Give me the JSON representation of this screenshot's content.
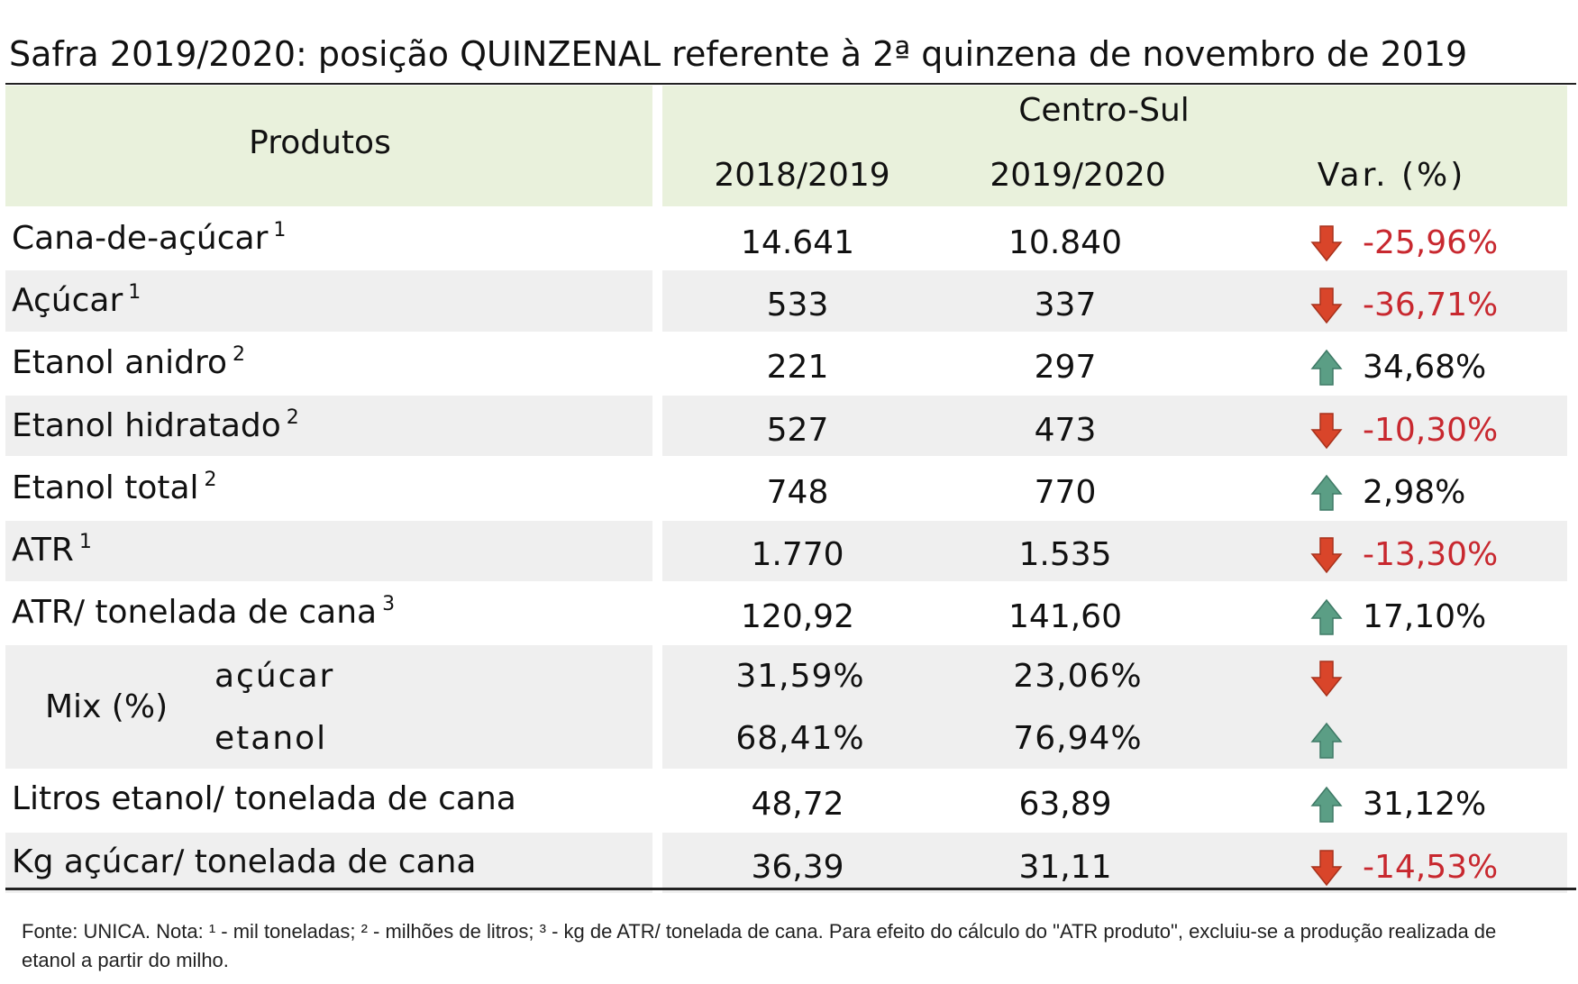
{
  "title": "Safra 2019/2020: posição QUINZENAL referente à 2ª quinzena de novembro de 2019",
  "table": {
    "header": {
      "products": "Produtos",
      "region": "Centro-Sul",
      "columns": [
        "2018/2019",
        "2019/2020",
        "Var. (%)"
      ]
    },
    "rows": [
      {
        "label": "Cana-de-açúcar",
        "note": "1",
        "values": [
          "14.641",
          "10.840"
        ],
        "var": "-25,96%",
        "trend": "down"
      },
      {
        "label": "Açúcar",
        "note": "1",
        "values": [
          "533",
          "337"
        ],
        "var": "-36,71%",
        "trend": "down"
      },
      {
        "label": "Etanol anidro",
        "note": "2",
        "values": [
          "221",
          "297"
        ],
        "var": "34,68%",
        "trend": "up"
      },
      {
        "label": "Etanol hidratado",
        "note": "2",
        "values": [
          "527",
          "473"
        ],
        "var": "-10,30%",
        "trend": "down"
      },
      {
        "label": "Etanol total",
        "note": "2",
        "values": [
          "748",
          "770"
        ],
        "var": "2,98%",
        "trend": "up"
      },
      {
        "label": "ATR",
        "note": "1",
        "values": [
          "1.770",
          "1.535"
        ],
        "var": "-13,30%",
        "trend": "down"
      },
      {
        "label": "ATR/ tonelada de cana",
        "note": "3",
        "values": [
          "120,92",
          "141,60"
        ],
        "var": "17,10%",
        "trend": "up"
      },
      {
        "label": "Mix (%)",
        "items": [
          {
            "label": "açúcar",
            "values": [
              "31,59%",
              "23,06%"
            ],
            "trend": "down"
          },
          {
            "label": "etanol",
            "values": [
              "68,41%",
              "76,94%"
            ],
            "trend": "up"
          }
        ]
      },
      {
        "label": "Litros etanol/ tonelada de cana",
        "values": [
          "48,72",
          "63,89"
        ],
        "var": "31,12%",
        "trend": "up"
      },
      {
        "label": "Kg açúcar/ tonelada de cana",
        "values": [
          "36,39",
          "31,11"
        ],
        "var": "-14,53%",
        "trend": "down"
      }
    ]
  },
  "footnote": "Fonte: UNICA. Nota: ¹ - mil toneladas; ² - milhões de litros; ³ - kg de ATR/ tonelada de cana. Para efeito do cálculo do \"ATR produto\", excluiu-se a produção realizada de etanol a partir do milho."
}
